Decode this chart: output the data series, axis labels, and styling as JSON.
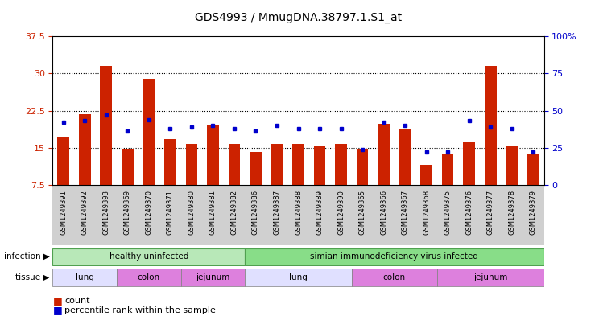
{
  "title": "GDS4993 / MmugDNA.38797.1.S1_at",
  "samples": [
    "GSM1249391",
    "GSM1249392",
    "GSM1249393",
    "GSM1249369",
    "GSM1249370",
    "GSM1249371",
    "GSM1249380",
    "GSM1249381",
    "GSM1249382",
    "GSM1249386",
    "GSM1249387",
    "GSM1249388",
    "GSM1249389",
    "GSM1249390",
    "GSM1249365",
    "GSM1249366",
    "GSM1249367",
    "GSM1249368",
    "GSM1249375",
    "GSM1249376",
    "GSM1249377",
    "GSM1249378",
    "GSM1249379"
  ],
  "counts": [
    17.2,
    21.8,
    31.5,
    14.8,
    29.0,
    16.8,
    15.8,
    19.5,
    15.7,
    14.2,
    15.8,
    15.7,
    15.5,
    15.8,
    14.8,
    19.8,
    18.7,
    11.5,
    13.8,
    16.2,
    31.5,
    15.2,
    13.7
  ],
  "percentiles": [
    42,
    43,
    47,
    36,
    44,
    38,
    39,
    40,
    38,
    36,
    40,
    38,
    38,
    38,
    24,
    42,
    40,
    22,
    22,
    43,
    39,
    38,
    22
  ],
  "ylim_left": [
    7.5,
    37.5
  ],
  "ylim_right": [
    0,
    100
  ],
  "yticks_left": [
    7.5,
    15.0,
    22.5,
    30.0,
    37.5
  ],
  "yticks_right": [
    0,
    25,
    50,
    75,
    100
  ],
  "bar_color": "#cc2200",
  "dot_color": "#0000cc",
  "tick_bg": "#d0d0d0",
  "inf_healthy_color": "#b8e8b8",
  "inf_siv_color": "#88dd88",
  "tis_lung_color": "#e0e0ff",
  "tis_other_color": "#dd80dd",
  "infection_groups": [
    {
      "label": "healthy uninfected",
      "start": 0,
      "end": 9,
      "healthy": true
    },
    {
      "label": "simian immunodeficiency virus infected",
      "start": 9,
      "end": 23,
      "healthy": false
    }
  ],
  "tissue_groups": [
    {
      "label": "lung",
      "start": 0,
      "end": 3,
      "type": "lung"
    },
    {
      "label": "colon",
      "start": 3,
      "end": 6,
      "type": "other"
    },
    {
      "label": "jejunum",
      "start": 6,
      "end": 9,
      "type": "other"
    },
    {
      "label": "lung",
      "start": 9,
      "end": 14,
      "type": "lung"
    },
    {
      "label": "colon",
      "start": 14,
      "end": 18,
      "type": "other"
    },
    {
      "label": "jejunum",
      "start": 18,
      "end": 23,
      "type": "other"
    }
  ]
}
